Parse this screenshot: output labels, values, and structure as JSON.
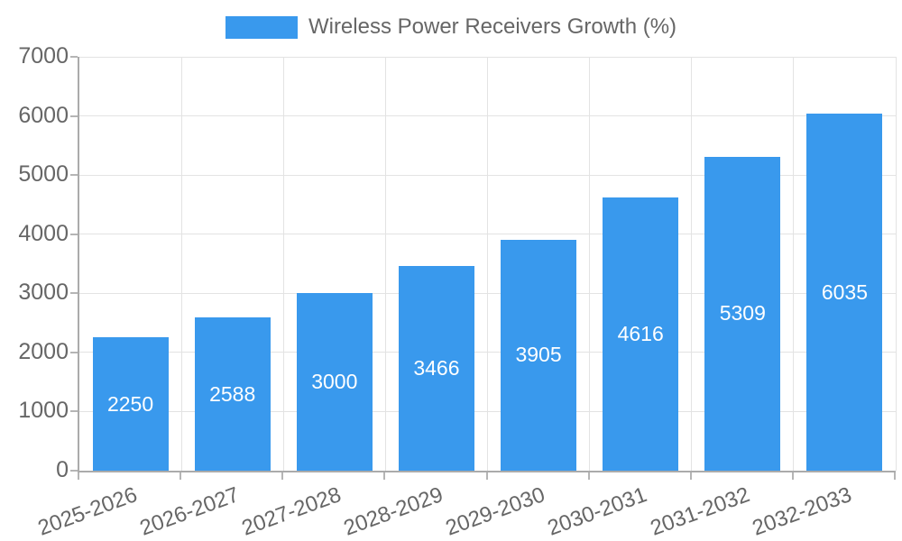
{
  "chart_data": {
    "type": "bar",
    "title": "Wireless Power Receivers Growth (%)",
    "categories": [
      "2025-2026",
      "2026-2027",
      "2027-2028",
      "2028-2029",
      "2029-2030",
      "2030-2031",
      "2031-2032",
      "2032-2033"
    ],
    "values": [
      2250,
      2588,
      3000,
      3466,
      3905,
      4616,
      5309,
      6035
    ],
    "xlabel": "",
    "ylabel": "",
    "ylim": [
      0,
      7000
    ],
    "ytick_step": 1000,
    "ytick_labels": [
      "0",
      "1000",
      "2000",
      "3000",
      "4000",
      "5000",
      "6000",
      "7000"
    ],
    "grid": true,
    "legend_position": "top",
    "value_labels_inside_bars": true,
    "colors": {
      "bar": "#3999ED",
      "bar_value_text": "#ffffff",
      "axis_text": "#666666",
      "legend_text": "#666666",
      "gridline": "#E3E3E3",
      "axis_line": "#ABABAB",
      "tick_mark": "#B5B5B5",
      "background": "#ffffff"
    }
  }
}
